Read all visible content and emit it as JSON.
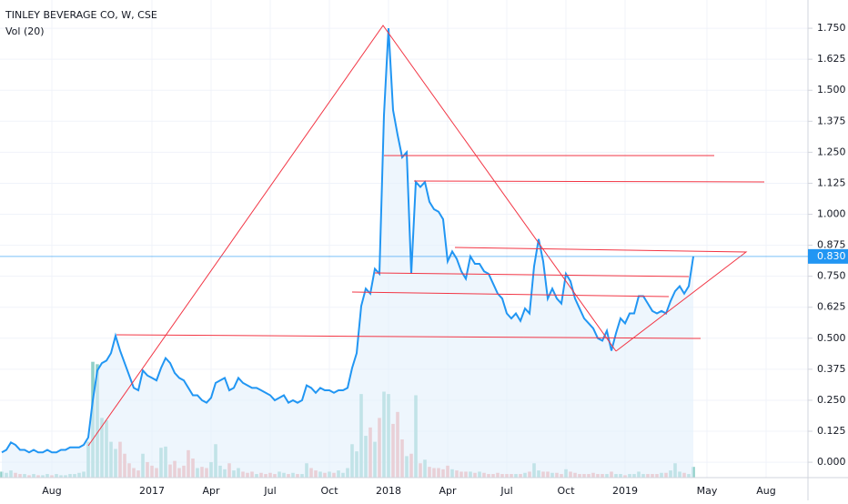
{
  "chart_data": {
    "type": "line",
    "categories": [
      null,
      null,
      null,
      null,
      null,
      null,
      null,
      null,
      null,
      null,
      null,
      "Aug",
      null,
      null,
      null,
      null,
      null,
      null,
      null,
      null,
      null,
      null,
      null,
      null,
      null,
      null,
      null,
      null,
      null,
      null,
      null,
      null,
      null,
      "2017",
      null,
      null,
      null,
      null,
      null,
      null,
      null,
      null,
      null,
      null,
      null,
      null,
      "Apr",
      null,
      null,
      null,
      null,
      null,
      null,
      null,
      null,
      null,
      null,
      null,
      null,
      "Jul",
      null,
      null,
      null,
      null,
      null,
      null,
      null,
      null,
      null,
      null,
      null,
      null,
      "Oct",
      null,
      null,
      null,
      null,
      null,
      null,
      null,
      null,
      null,
      null,
      null,
      null,
      "2018",
      null,
      null,
      null,
      null,
      null,
      null,
      null,
      null,
      null,
      null,
      null,
      null,
      "Apr",
      null,
      null,
      null,
      null,
      null,
      null,
      null,
      null,
      null,
      null,
      null,
      null,
      "Jul",
      null,
      null,
      null,
      null,
      null,
      null,
      null,
      null,
      null,
      null,
      null,
      null,
      "Oct",
      null,
      null,
      null,
      null,
      null,
      null,
      null,
      null,
      null,
      null,
      null,
      null,
      "2019",
      null,
      null,
      null,
      null,
      null,
      null,
      null,
      null,
      null,
      null,
      null,
      null,
      null,
      null,
      null,
      null,
      null,
      "May",
      null,
      null,
      null,
      null,
      null,
      null,
      null,
      null,
      null,
      null,
      null,
      null,
      "Aug"
    ],
    "series": [
      {
        "name": "TINLEY BEVERAGE CO, W, CSE",
        "color": "#2196f3",
        "area_color": "#e3f0fc",
        "values": [
          0.04,
          0.05,
          0.08,
          0.07,
          0.05,
          0.05,
          0.04,
          0.05,
          0.04,
          0.04,
          0.05,
          0.04,
          0.04,
          0.05,
          0.05,
          0.06,
          0.06,
          0.06,
          0.07,
          0.1,
          0.25,
          0.37,
          0.4,
          0.41,
          0.44,
          0.51,
          0.45,
          0.4,
          0.35,
          0.3,
          0.29,
          0.37,
          0.35,
          0.34,
          0.33,
          0.38,
          0.42,
          0.4,
          0.36,
          0.34,
          0.33,
          0.3,
          0.27,
          0.27,
          0.25,
          0.24,
          0.26,
          0.32,
          0.33,
          0.34,
          0.29,
          0.3,
          0.34,
          0.32,
          0.31,
          0.3,
          0.3,
          0.29,
          0.28,
          0.27,
          0.25,
          0.26,
          0.27,
          0.24,
          0.25,
          0.24,
          0.25,
          0.31,
          0.3,
          0.28,
          0.3,
          0.29,
          0.29,
          0.28,
          0.29,
          0.29,
          0.3,
          0.38,
          0.44,
          0.63,
          0.7,
          0.68,
          0.78,
          0.76,
          1.4,
          1.75,
          1.42,
          1.32,
          1.23,
          1.25,
          0.76,
          1.13,
          1.11,
          1.13,
          1.05,
          1.02,
          1.01,
          0.98,
          0.81,
          0.85,
          0.82,
          0.77,
          0.74,
          0.83,
          0.8,
          0.8,
          0.77,
          0.76,
          0.72,
          0.68,
          0.66,
          0.6,
          0.58,
          0.6,
          0.57,
          0.62,
          0.6,
          0.79,
          0.9,
          0.81,
          0.66,
          0.7,
          0.66,
          0.64,
          0.76,
          0.73,
          0.66,
          0.62,
          0.58,
          0.56,
          0.54,
          0.5,
          0.49,
          0.53,
          0.45,
          0.52,
          0.58,
          0.56,
          0.6,
          0.6,
          0.67,
          0.67,
          0.64,
          0.61,
          0.6,
          0.61,
          0.6,
          0.65,
          0.69,
          0.71,
          0.68,
          0.71,
          0.83,
          null,
          null,
          null,
          null,
          null,
          null,
          null,
          null,
          null,
          null,
          null,
          null,
          null,
          null,
          null,
          null
        ]
      },
      {
        "name": "Vol (20)",
        "axis": "y2",
        "up_color": "#8fd0c8",
        "down_color": "#f2a0a0",
        "values": [
          0.5,
          0.4,
          0.6,
          0.4,
          0.3,
          0.3,
          0.2,
          0.3,
          0.2,
          0.2,
          0.3,
          0.2,
          0.3,
          0.2,
          0.2,
          0.3,
          0.3,
          0.4,
          0.5,
          3,
          9.7,
          9.5,
          5,
          4.8,
          3,
          2.4,
          3,
          2,
          1.2,
          0.8,
          0.6,
          2,
          1.3,
          1.0,
          0.8,
          2.5,
          2.6,
          1.1,
          1.4,
          0.8,
          1.0,
          2.3,
          1.6,
          0.8,
          0.9,
          0.8,
          1.3,
          2.8,
          1.0,
          0.7,
          1.2,
          0.6,
          0.8,
          0.5,
          0.4,
          0.5,
          0.3,
          0.4,
          0.3,
          0.4,
          0.3,
          0.5,
          0.4,
          0.3,
          0.4,
          0.3,
          0.3,
          1.2,
          0.8,
          0.6,
          0.5,
          0.4,
          0.5,
          0.4,
          0.6,
          0.4,
          0.8,
          2.8,
          2.2,
          7.0,
          3.5,
          4.2,
          3.0,
          5.0,
          7.2,
          7.0,
          4.5,
          5.5,
          3.2,
          1.8,
          2.0,
          6.9,
          1.2,
          1.5,
          0.9,
          0.8,
          0.8,
          0.7,
          1.0,
          0.7,
          0.6,
          0.5,
          0.5,
          0.5,
          0.4,
          0.5,
          0.4,
          0.3,
          0.3,
          0.4,
          0.3,
          0.3,
          0.3,
          0.3,
          0.3,
          0.4,
          0.5,
          1.2,
          0.6,
          0.5,
          0.5,
          0.4,
          0.4,
          0.3,
          0.7,
          0.5,
          0.4,
          0.3,
          0.3,
          0.3,
          0.4,
          0.3,
          0.3,
          0.3,
          0.5,
          0.3,
          0.3,
          0.2,
          0.3,
          0.3,
          0.5,
          0.3,
          0.3,
          0.3,
          0.3,
          0.4,
          0.4,
          0.6,
          1.2,
          0.5,
          0.4,
          0.3,
          0.9,
          null,
          null,
          null,
          null,
          null,
          null,
          null,
          null,
          null,
          null,
          null,
          null,
          null,
          null,
          null,
          null
        ]
      }
    ],
    "ylim": [
      -0.062,
      1.864
    ],
    "yticks": [
      {
        "value": 0,
        "label": "0.000"
      },
      {
        "value": 0.125,
        "label": "0.125"
      },
      {
        "value": 0.25,
        "label": "0.250"
      },
      {
        "value": 0.375,
        "label": "0.375"
      },
      {
        "value": 0.5,
        "label": "0.500"
      },
      {
        "value": 0.625,
        "label": "0.625"
      },
      {
        "value": 0.75,
        "label": "0.750"
      },
      {
        "value": 0.875,
        "label": "0.875"
      },
      {
        "value": 1,
        "label": "1.000"
      },
      {
        "value": 1.125,
        "label": "1.125"
      },
      {
        "value": 1.25,
        "label": "1.250"
      },
      {
        "value": 1.375,
        "label": "1.375"
      },
      {
        "value": 1.5,
        "label": "1.500"
      },
      {
        "value": 1.625,
        "label": "1.625"
      },
      {
        "value": 1.75,
        "label": "1.750"
      }
    ],
    "y2lim": [
      0,
      40
    ],
    "last_value": {
      "value": 0.83,
      "label": "0.830"
    },
    "last_color": "#2196f3",
    "grid": true
  }
}
